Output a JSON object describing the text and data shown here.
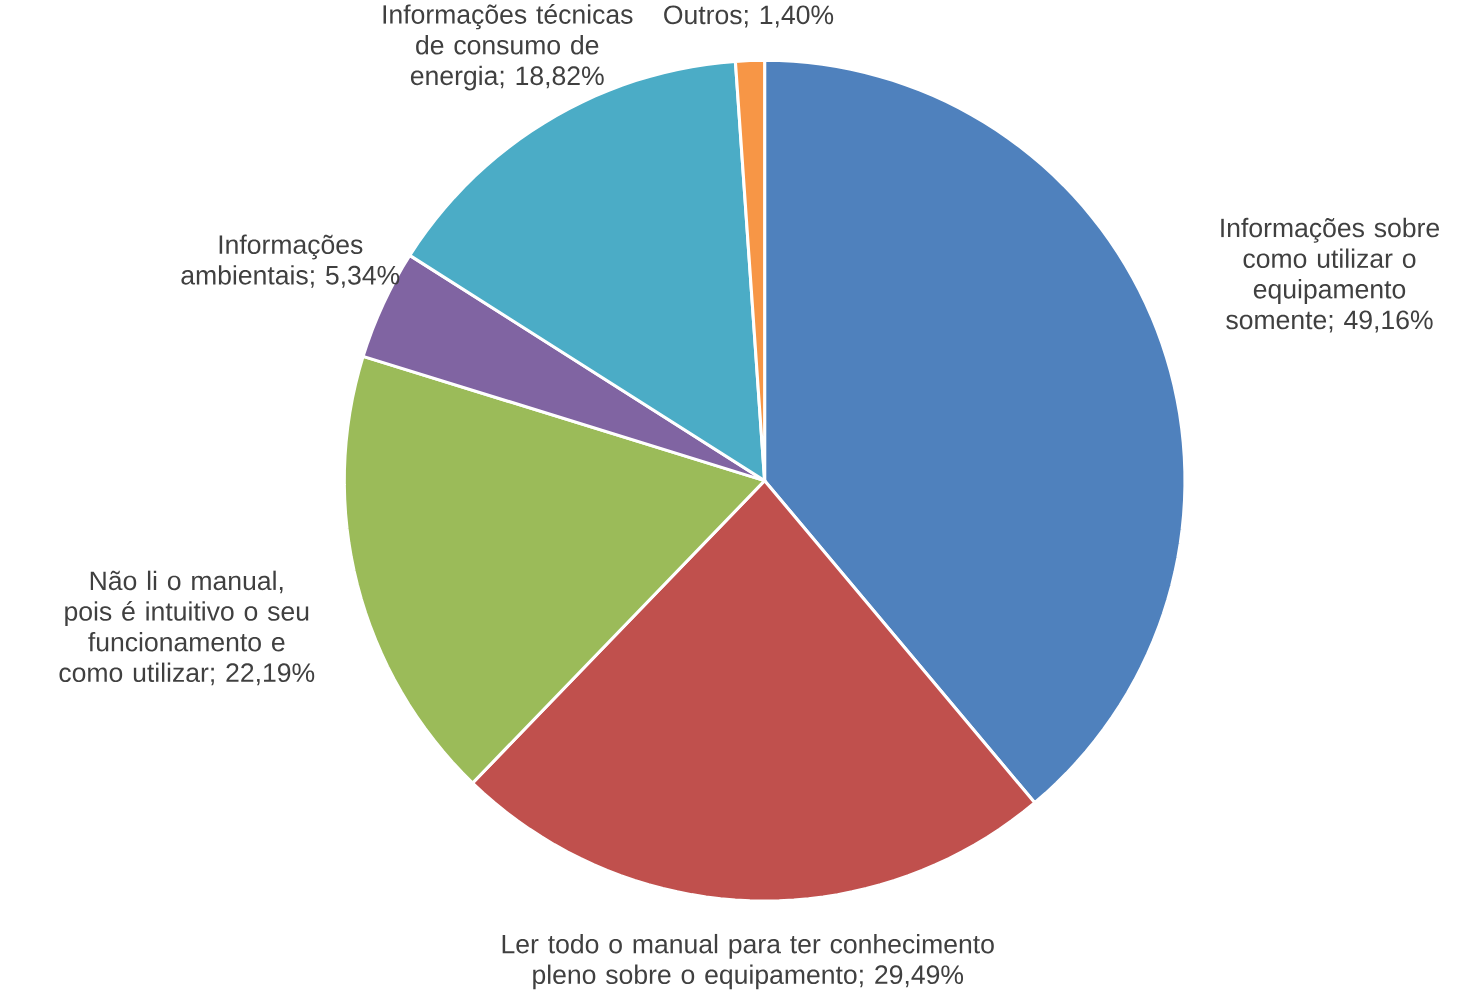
{
  "chart_data": {
    "type": "pie",
    "categories": [
      "Informações sobre como utilizar o equipamento somente; 49,16%",
      "Ler todo o manual para ter conhecimento pleno sobre o equipamento; 29,49%",
      "Não li o manual, pois é intuitivo o seu funcionamento e como utilizar; 22,19%",
      "Informações ambientais; 5,34%",
      "Informações técnicas de consumo de energia; 18,82%",
      "Outros; 1,40%"
    ],
    "values": [
      49.16,
      29.49,
      22.19,
      5.34,
      18.82,
      1.4
    ],
    "colors": [
      "#4f81bd",
      "#c0504d",
      "#9bbb59",
      "#8064a2",
      "#4bacc6",
      "#f79646"
    ]
  }
}
